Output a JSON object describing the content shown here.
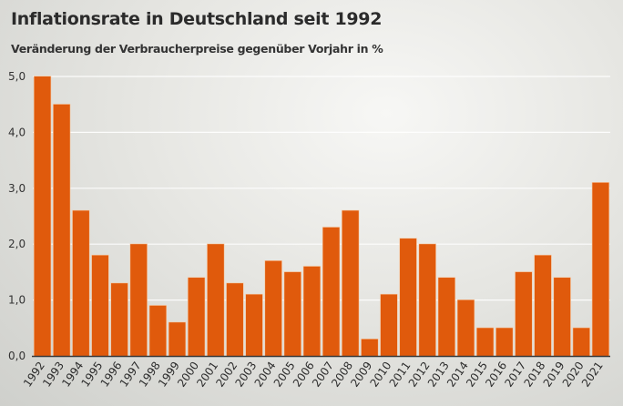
{
  "chart_data": {
    "type": "bar",
    "title": "Inflationsrate in Deutschland seit 1992",
    "subtitle": "Veränderung der Verbraucherpreise gegenüber Vorjahr in %",
    "xlabel": "",
    "ylabel": "",
    "categories": [
      "1992",
      "1993",
      "1994",
      "1995",
      "1996",
      "1997",
      "1998",
      "1999",
      "2000",
      "2001",
      "2002",
      "2003",
      "2004",
      "2005",
      "2006",
      "2007",
      "2008",
      "2009",
      "2010",
      "2011",
      "2012",
      "2013",
      "2014",
      "2015",
      "2016",
      "2017",
      "2018",
      "2019",
      "2020",
      "2021"
    ],
    "values": [
      5.0,
      4.5,
      2.6,
      1.8,
      1.3,
      2.0,
      0.9,
      0.6,
      1.4,
      2.0,
      1.3,
      1.1,
      1.7,
      1.5,
      1.6,
      2.3,
      2.6,
      0.3,
      1.1,
      2.1,
      2.0,
      1.4,
      1.0,
      0.5,
      0.5,
      1.5,
      1.8,
      1.4,
      0.5,
      3.1
    ],
    "ylim": [
      0,
      5
    ],
    "yticks": [
      0,
      1,
      2,
      3,
      4,
      5
    ],
    "ytick_labels": [
      "0,0",
      "1,0",
      "2,0",
      "3,0",
      "4,0",
      "5,0"
    ],
    "grid": true,
    "bar_color": "#e05a0c",
    "bar_outline_color": "#f6c9a3",
    "gridline_color": "#ffffff",
    "axis_color": "#3a3a3a"
  }
}
